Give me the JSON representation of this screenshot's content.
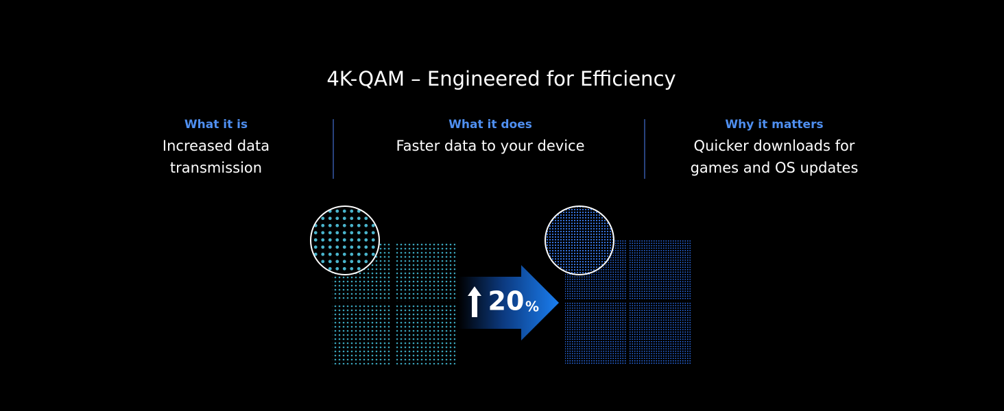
{
  "header": {
    "title": "4K-QAM – Engineered for Efficiency"
  },
  "columns": [
    {
      "label": "What it is",
      "lines": [
        "Increased data",
        "transmission"
      ]
    },
    {
      "label": "What it does",
      "lines": [
        "Faster data to your device"
      ]
    },
    {
      "label": "Why it matters",
      "lines": [
        "Quicker downloads for",
        "games and OS updates"
      ]
    }
  ],
  "badge": {
    "number": "20",
    "unit": "%"
  }
}
